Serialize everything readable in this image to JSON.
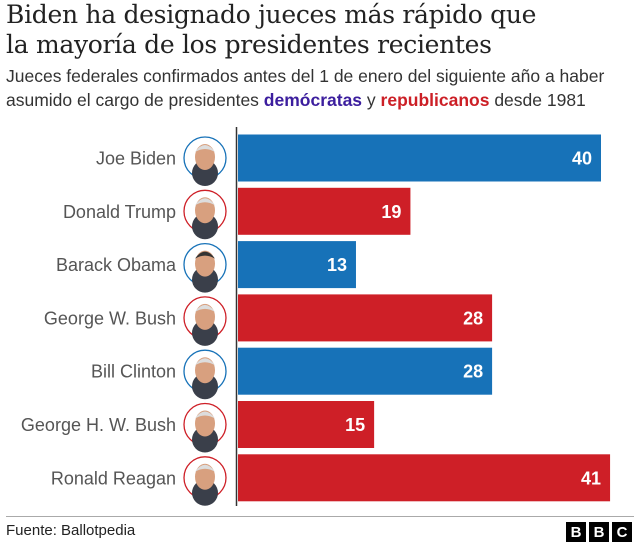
{
  "title_line1": "Biden ha designado jueces más rápido que",
  "title_line2": "la mayoría de los presidentes recientes",
  "subtitle": {
    "part1": "Jueces federales confirmados antes del 1 de enero del siguiente año a haber asumido el cargo de presidentes ",
    "dem": "demócratas",
    "mid": " y ",
    "rep": "republicanos",
    "part2": " desde 1981"
  },
  "chart_data": {
    "type": "bar",
    "orientation": "horizontal",
    "categories": [
      "Joe Biden",
      "Donald Trump",
      "Barack Obama",
      "George W. Bush",
      "Bill Clinton",
      "George H. W. Bush",
      "Ronald Reagan"
    ],
    "values": [
      40,
      19,
      13,
      28,
      28,
      15,
      41
    ],
    "party": [
      "dem",
      "rep",
      "dem",
      "rep",
      "dem",
      "rep",
      "rep"
    ],
    "colors": {
      "dem": "#1772b8",
      "rep": "#ce1f27"
    },
    "data_labels": true,
    "grid": false
  },
  "source": "Fuente: Ballotpedia",
  "logo": "BBC"
}
